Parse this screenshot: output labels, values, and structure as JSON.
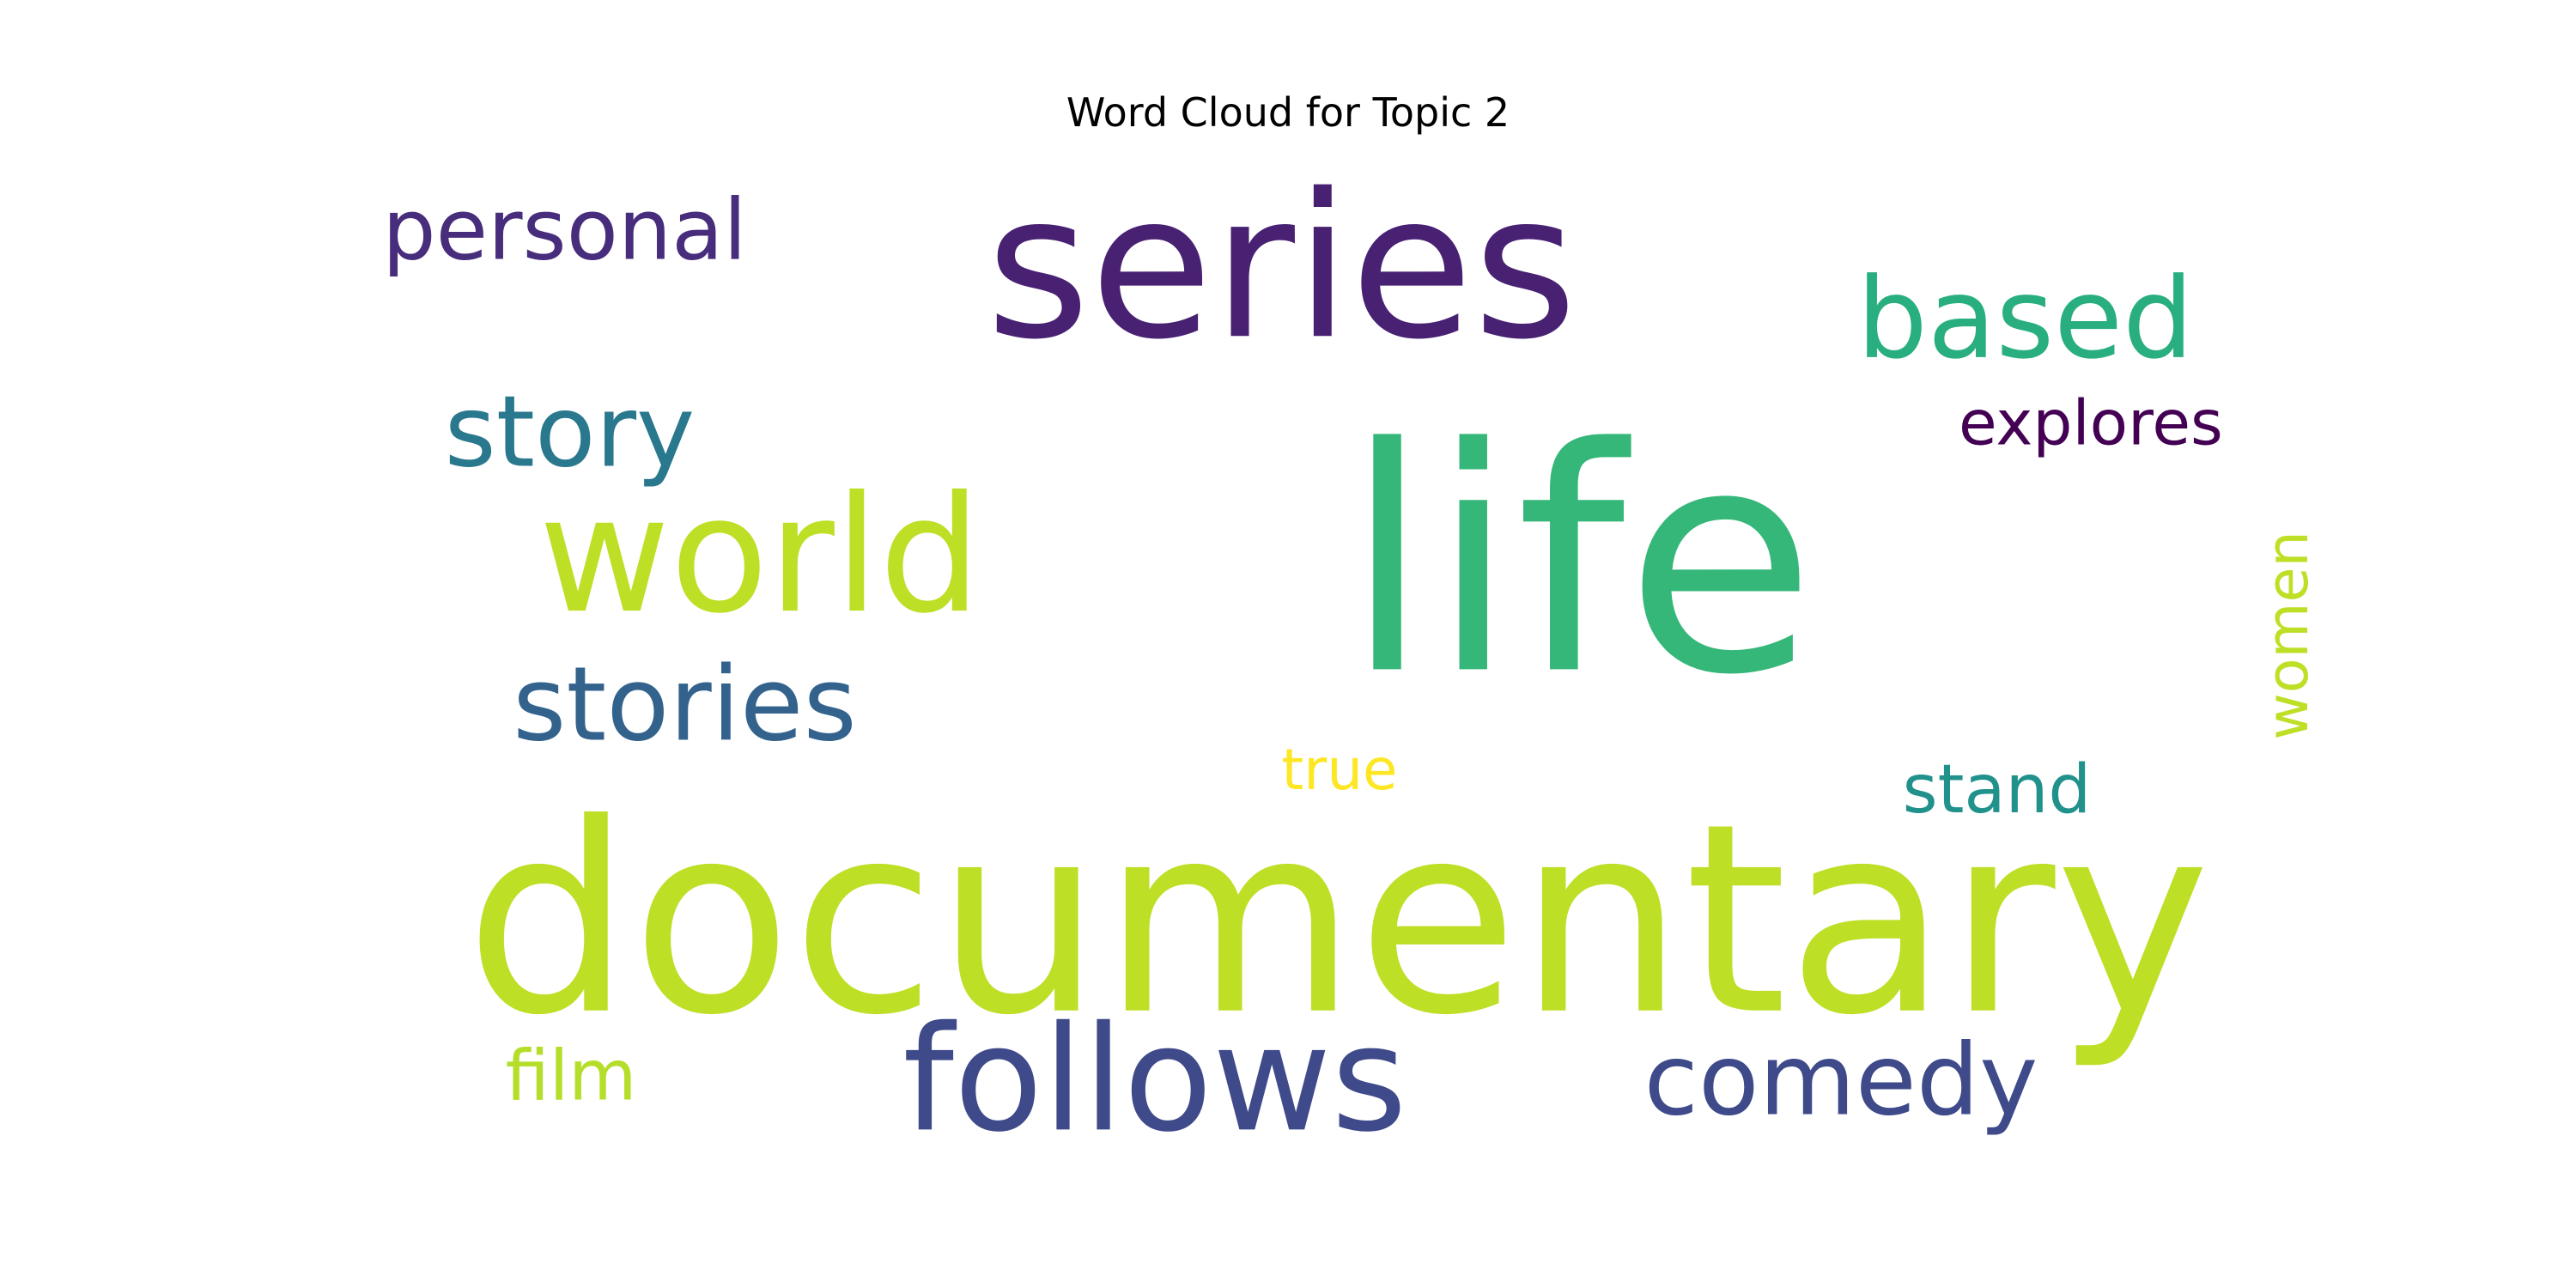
{
  "title": "Word Cloud for Topic 2",
  "words": [
    {
      "id": "life",
      "text": "life",
      "color": "#35b779",
      "orientation": "horizontal"
    },
    {
      "id": "documentary",
      "text": "documentary",
      "color": "#bddf26",
      "orientation": "horizontal"
    },
    {
      "id": "series",
      "text": "series",
      "color": "#482173",
      "orientation": "horizontal"
    },
    {
      "id": "follows",
      "text": "follows",
      "color": "#3e4a89",
      "orientation": "horizontal"
    },
    {
      "id": "world",
      "text": "world",
      "color": "#bddf26",
      "orientation": "horizontal"
    },
    {
      "id": "based",
      "text": "based",
      "color": "#29af7f",
      "orientation": "horizontal"
    },
    {
      "id": "stories",
      "text": "stories",
      "color": "#33638d",
      "orientation": "horizontal"
    },
    {
      "id": "comedy",
      "text": "comedy",
      "color": "#3e4a89",
      "orientation": "horizontal"
    },
    {
      "id": "story",
      "text": "story",
      "color": "#2a788e",
      "orientation": "horizontal"
    },
    {
      "id": "explores",
      "text": "explores",
      "color": "#440154",
      "orientation": "horizontal"
    },
    {
      "id": "personal",
      "text": "personal",
      "color": "#472d7b",
      "orientation": "horizontal"
    },
    {
      "id": "stand",
      "text": "stand",
      "color": "#21918c",
      "orientation": "horizontal"
    },
    {
      "id": "women",
      "text": "women",
      "color": "#bddf26",
      "orientation": "vertical"
    },
    {
      "id": "true",
      "text": "true",
      "color": "#fde725",
      "orientation": "horizontal"
    },
    {
      "id": "film",
      "text": "film",
      "color": "#b5de2b",
      "orientation": "horizontal"
    }
  ]
}
